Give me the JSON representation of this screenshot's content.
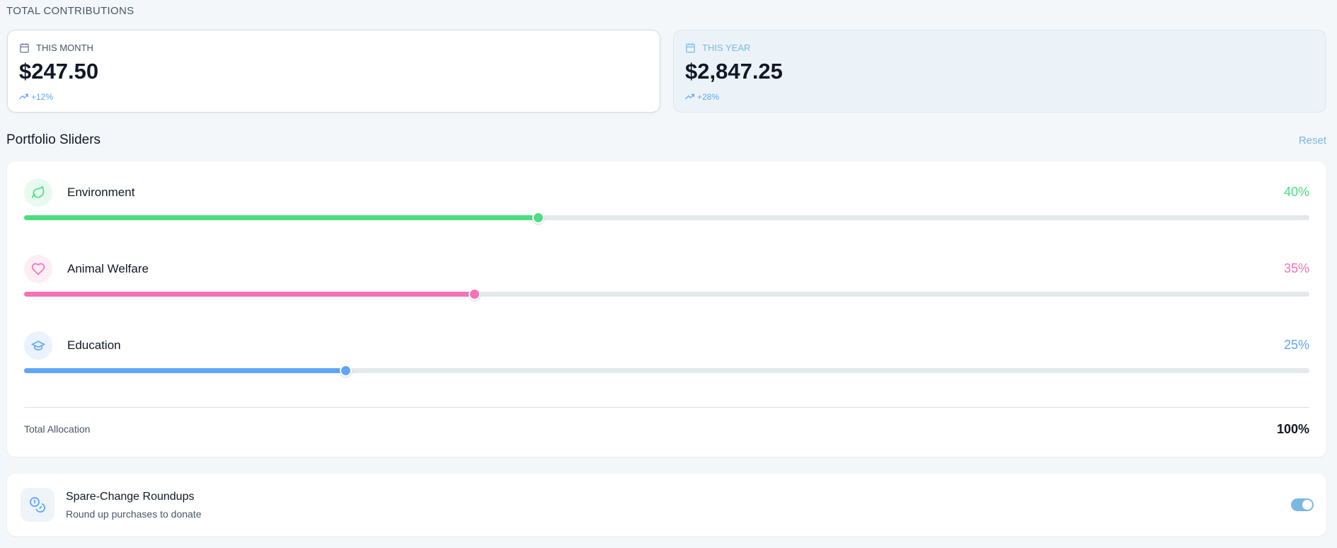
{
  "header": {
    "title": "TOTAL CONTRIBUTIONS"
  },
  "cards": [
    {
      "label": "THIS MONTH",
      "amount": "$247.50",
      "change": "+12%"
    },
    {
      "label": "THIS YEAR",
      "amount": "$2,847.25",
      "change": "+28%"
    }
  ],
  "portfolio": {
    "title": "Portfolio Sliders",
    "reset": "Reset",
    "sliders": [
      {
        "name": "Environment",
        "value": 40,
        "label": "40%",
        "color": "#4ade80"
      },
      {
        "name": "Animal Welfare",
        "value": 35,
        "label": "35%",
        "color": "#f472b6"
      },
      {
        "name": "Education",
        "value": 25,
        "label": "25%",
        "color": "#60a5fa"
      }
    ],
    "total_label": "Total Allocation",
    "total": "100%"
  },
  "roundups": {
    "title": "Spare-Change Roundups",
    "subtitle": "Round up purchases to donate",
    "enabled": true
  }
}
